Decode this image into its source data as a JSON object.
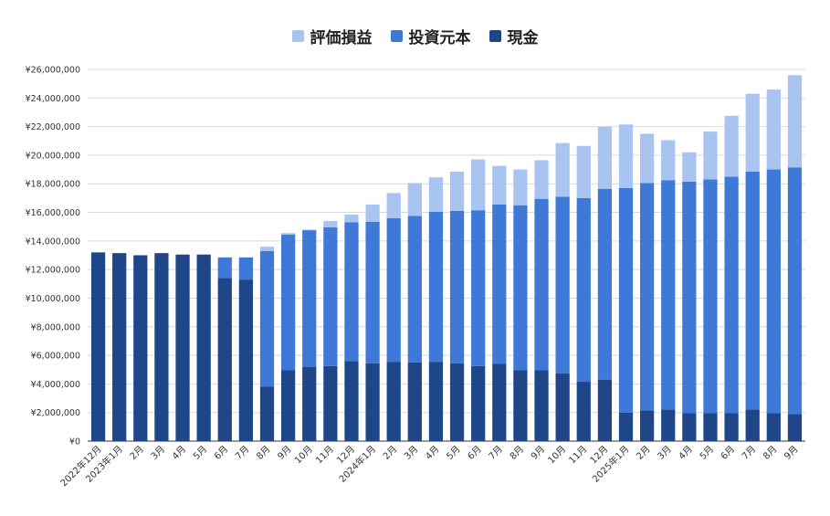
{
  "chart_data": {
    "type": "bar",
    "stacked": true,
    "title": "",
    "xlabel": "",
    "ylabel": "",
    "ylim": [
      0,
      26000000
    ],
    "y_ticks": [
      "¥0",
      "¥2,000,000",
      "¥4,000,000",
      "¥6,000,000",
      "¥8,000,000",
      "¥10,000,000",
      "¥12,000,000",
      "¥14,000,000",
      "¥16,000,000",
      "¥18,000,000",
      "¥20,000,000",
      "¥22,000,000",
      "¥24,000,000",
      "¥26,000,000"
    ],
    "grid": true,
    "legend_position": "top",
    "categories": [
      "2022年12月",
      "2023年1月",
      "2月",
      "3月",
      "4月",
      "5月",
      "6月",
      "7月",
      "8月",
      "9月",
      "10月",
      "11月",
      "12月",
      "2024年1月",
      "2月",
      "3月",
      "4月",
      "5月",
      "6月",
      "7月",
      "8月",
      "9月",
      "10月",
      "11月",
      "12月",
      "2025年1月",
      "2月",
      "3月",
      "4月",
      "5月",
      "6月",
      "7月",
      "8月",
      "9月"
    ],
    "series": [
      {
        "name": "現金",
        "color": "#1f4689",
        "values": [
          13200000,
          13150000,
          13000000,
          13150000,
          13050000,
          13050000,
          11400000,
          11300000,
          3800000,
          4950000,
          5200000,
          5250000,
          5600000,
          5450000,
          5550000,
          5500000,
          5550000,
          5450000,
          5250000,
          5400000,
          4950000,
          4950000,
          4750000,
          4150000,
          4300000,
          2000000,
          2150000,
          2200000,
          1950000,
          1950000,
          1950000,
          2200000,
          1950000,
          1900000
        ]
      },
      {
        "name": "投資元本",
        "color": "#3f79d8",
        "values": [
          0,
          0,
          0,
          0,
          0,
          0,
          1450000,
          1550000,
          9500000,
          9500000,
          9550000,
          9700000,
          9700000,
          9900000,
          10050000,
          10250000,
          10500000,
          10650000,
          10900000,
          11150000,
          11550000,
          12000000,
          12350000,
          12850000,
          13350000,
          15700000,
          15900000,
          16050000,
          16200000,
          16350000,
          16550000,
          16650000,
          17050000,
          17250000
        ]
      },
      {
        "name": "評価損益",
        "color": "#a9c4f1",
        "values": [
          0,
          0,
          0,
          0,
          0,
          0,
          0,
          0,
          300000,
          100000,
          50000,
          450000,
          550000,
          1200000,
          1750000,
          2300000,
          2400000,
          2750000,
          3550000,
          2700000,
          2500000,
          2700000,
          3750000,
          3650000,
          4350000,
          4450000,
          3450000,
          2800000,
          2050000,
          3350000,
          4250000,
          5450000,
          5600000,
          6450000
        ]
      }
    ]
  }
}
